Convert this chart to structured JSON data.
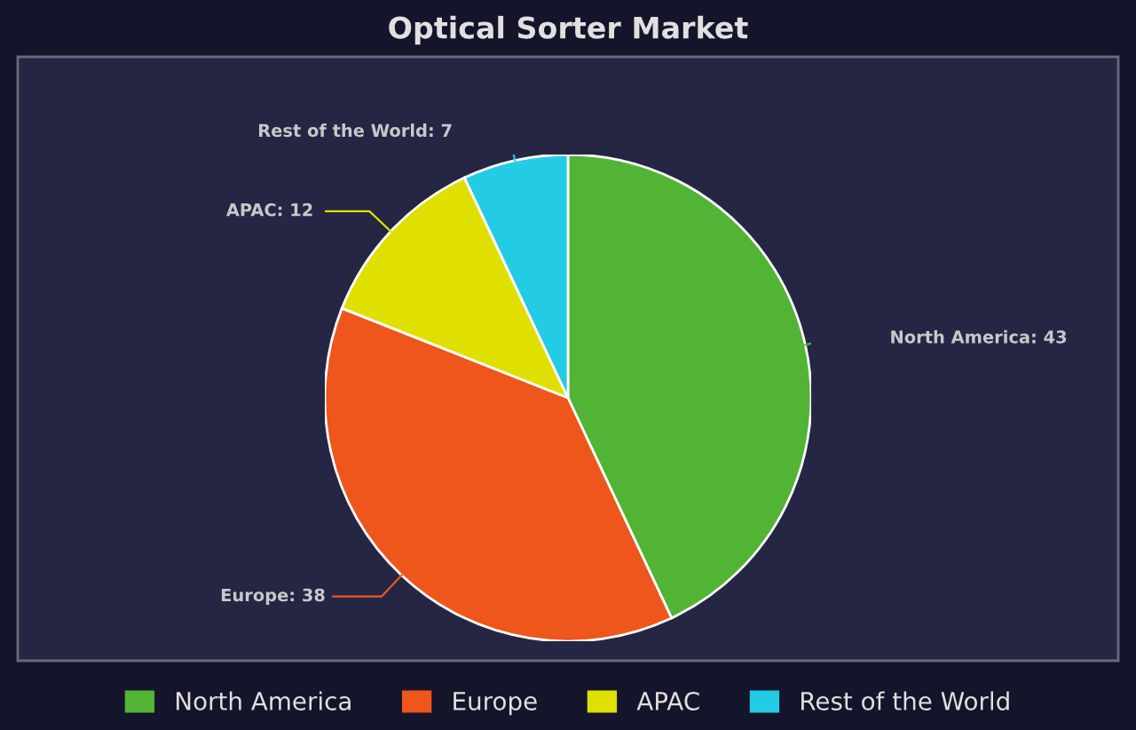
{
  "chart_data": {
    "type": "pie",
    "title": "Optical Sorter Market",
    "categories": [
      "North America",
      "Europe",
      "APAC",
      "Rest of the World"
    ],
    "values": [
      43,
      38,
      12,
      7
    ],
    "colors": [
      "#52b435",
      "#ee561b",
      "#dfe000",
      "#24cbe5"
    ],
    "value_labels": [
      "North America: 43",
      "Europe: 38",
      "APAC: 12",
      "Rest of the World: 7"
    ],
    "legend": "bottom"
  }
}
